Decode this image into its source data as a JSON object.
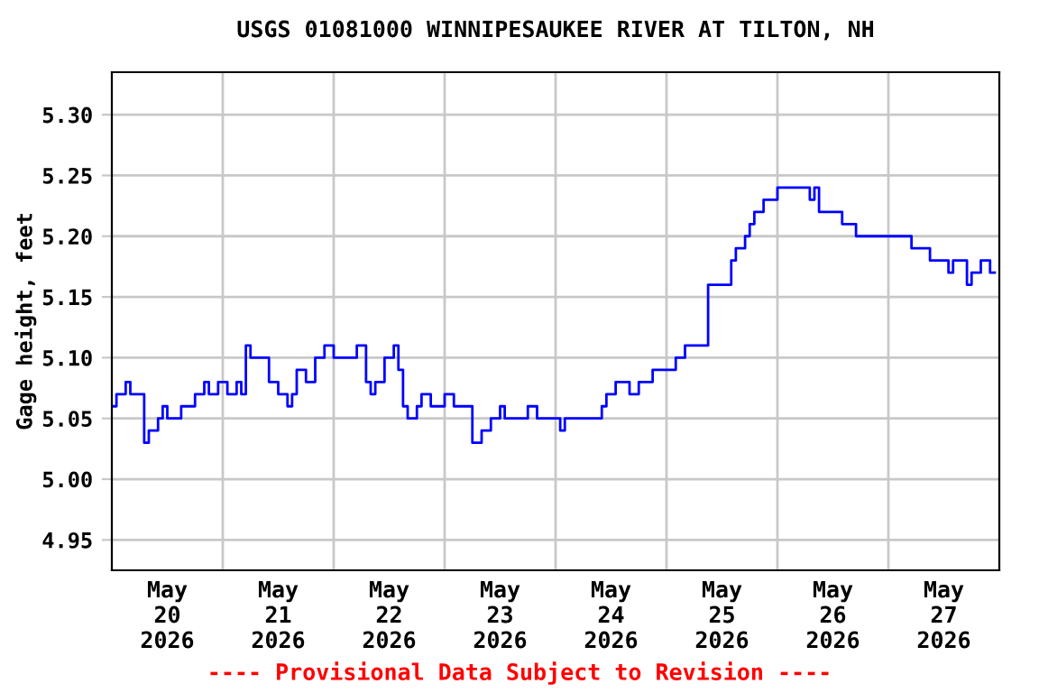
{
  "chart_data": {
    "type": "step",
    "title": "USGS 01081000 WINNIPESAUKEE RIVER AT TILTON, NH",
    "ylabel": "Gage height, feet",
    "annotations": [
      "---- Provisional Data Subject to Revision ----"
    ],
    "x": [
      "2026-05-20T00:00",
      "2026-05-20T01:00",
      "2026-05-20T03:00",
      "2026-05-20T04:00",
      "2026-05-20T07:00",
      "2026-05-20T08:00",
      "2026-05-20T10:00",
      "2026-05-20T11:00",
      "2026-05-20T12:00",
      "2026-05-20T15:00",
      "2026-05-20T18:00",
      "2026-05-20T20:00",
      "2026-05-20T21:00",
      "2026-05-20T23:00",
      "2026-05-21T01:00",
      "2026-05-21T03:00",
      "2026-05-21T04:00",
      "2026-05-21T05:00",
      "2026-05-21T06:00",
      "2026-05-21T09:00",
      "2026-05-21T10:00",
      "2026-05-21T12:00",
      "2026-05-21T14:00",
      "2026-05-21T15:00",
      "2026-05-21T16:00",
      "2026-05-21T18:00",
      "2026-05-21T20:00",
      "2026-05-21T22:00",
      "2026-05-22T00:00",
      "2026-05-22T03:00",
      "2026-05-22T05:00",
      "2026-05-22T07:00",
      "2026-05-22T08:00",
      "2026-05-22T09:00",
      "2026-05-22T11:00",
      "2026-05-22T13:00",
      "2026-05-22T14:00",
      "2026-05-22T15:00",
      "2026-05-22T16:00",
      "2026-05-22T18:00",
      "2026-05-22T19:00",
      "2026-05-22T21:00",
      "2026-05-23T00:00",
      "2026-05-23T02:00",
      "2026-05-23T05:00",
      "2026-05-23T06:00",
      "2026-05-23T08:00",
      "2026-05-23T10:00",
      "2026-05-23T12:00",
      "2026-05-23T13:00",
      "2026-05-23T18:00",
      "2026-05-23T20:00",
      "2026-05-24T00:00",
      "2026-05-24T01:00",
      "2026-05-24T02:00",
      "2026-05-24T08:00",
      "2026-05-24T10:00",
      "2026-05-24T11:00",
      "2026-05-24T13:00",
      "2026-05-24T16:00",
      "2026-05-24T18:00",
      "2026-05-24T21:00",
      "2026-05-25T02:00",
      "2026-05-25T04:00",
      "2026-05-25T08:00",
      "2026-05-25T09:00",
      "2026-05-25T11:00",
      "2026-05-25T14:00",
      "2026-05-25T15:00",
      "2026-05-25T17:00",
      "2026-05-25T18:00",
      "2026-05-25T19:00",
      "2026-05-25T21:00",
      "2026-05-26T00:00",
      "2026-05-26T07:00",
      "2026-05-26T08:00",
      "2026-05-26T09:00",
      "2026-05-26T12:00",
      "2026-05-26T14:00",
      "2026-05-26T16:00",
      "2026-05-26T17:00",
      "2026-05-27T05:00",
      "2026-05-27T09:00",
      "2026-05-27T13:00",
      "2026-05-27T14:00",
      "2026-05-27T17:00",
      "2026-05-27T18:00",
      "2026-05-27T20:00",
      "2026-05-27T22:00",
      "2026-05-27T23:00"
    ],
    "series": [
      {
        "color": "#0000ff",
        "values": [
          5.06,
          5.07,
          5.08,
          5.07,
          5.03,
          5.04,
          5.05,
          5.06,
          5.05,
          5.06,
          5.07,
          5.08,
          5.07,
          5.08,
          5.07,
          5.08,
          5.07,
          5.11,
          5.1,
          5.1,
          5.08,
          5.07,
          5.06,
          5.07,
          5.09,
          5.08,
          5.1,
          5.11,
          5.1,
          5.1,
          5.11,
          5.08,
          5.07,
          5.08,
          5.1,
          5.11,
          5.09,
          5.06,
          5.05,
          5.06,
          5.07,
          5.06,
          5.07,
          5.06,
          5.06,
          5.03,
          5.04,
          5.05,
          5.06,
          5.05,
          5.06,
          5.05,
          5.05,
          5.04,
          5.05,
          5.05,
          5.06,
          5.07,
          5.08,
          5.07,
          5.08,
          5.09,
          5.1,
          5.11,
          5.11,
          5.16,
          5.16,
          5.18,
          5.19,
          5.2,
          5.21,
          5.22,
          5.23,
          5.24,
          5.23,
          5.24,
          5.22,
          5.22,
          5.21,
          5.21,
          5.2,
          5.19,
          5.18,
          5.17,
          5.18,
          5.16,
          5.17,
          5.18,
          5.17,
          5.17
        ]
      }
    ],
    "xlim": [
      "2026-05-20T00:00",
      "2026-05-28T00:00"
    ],
    "xticks": [
      {
        "value": "2026-05-20T12:00",
        "label": "May\n20\n2026"
      },
      {
        "value": "2026-05-21T12:00",
        "label": "May\n21\n2026"
      },
      {
        "value": "2026-05-22T12:00",
        "label": "May\n22\n2026"
      },
      {
        "value": "2026-05-23T12:00",
        "label": "May\n23\n2026"
      },
      {
        "value": "2026-05-24T12:00",
        "label": "May\n24\n2026"
      },
      {
        "value": "2026-05-25T12:00",
        "label": "May\n25\n2026"
      },
      {
        "value": "2026-05-26T12:00",
        "label": "May\n26\n2026"
      },
      {
        "value": "2026-05-27T12:00",
        "label": "May\n27\n2026"
      },
      {
        "value": "2026-05-21T00:00",
        "label": null
      },
      {
        "value": "2026-05-22T00:00",
        "label": null
      },
      {
        "value": "2026-05-23T00:00",
        "label": null
      },
      {
        "value": "2026-05-24T00:00",
        "label": null
      },
      {
        "value": "2026-05-25T00:00",
        "label": null
      },
      {
        "value": "2026-05-26T00:00",
        "label": null
      },
      {
        "value": "2026-05-27T00:00",
        "label": null
      }
    ],
    "ylim": [
      4.925,
      5.335
    ],
    "yticks": [
      {
        "value": 4.95,
        "label": "4.95"
      },
      {
        "value": 5.0,
        "label": "5.00"
      },
      {
        "value": 5.05,
        "label": "5.05"
      },
      {
        "value": 5.1,
        "label": "5.10"
      },
      {
        "value": 5.15,
        "label": "5.15"
      },
      {
        "value": 5.2,
        "label": "5.20"
      },
      {
        "value": 5.25,
        "label": "5.25"
      },
      {
        "value": 5.3,
        "label": "5.30"
      }
    ],
    "grid": true
  }
}
